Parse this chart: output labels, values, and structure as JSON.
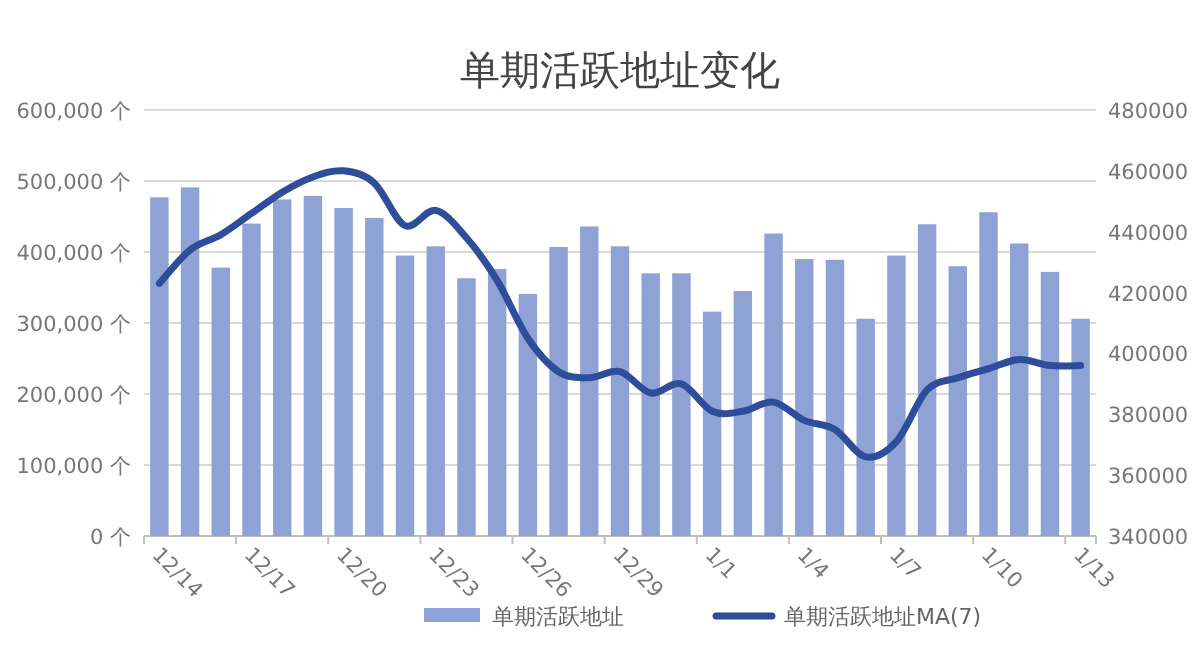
{
  "chart_data": {
    "type": "bar",
    "title": "单期活跃地址变化",
    "categories": [
      "12/14",
      null,
      null,
      "12/17",
      null,
      null,
      "12/20",
      null,
      null,
      "12/23",
      null,
      null,
      "12/26",
      null,
      null,
      "12/29",
      null,
      null,
      "1/1",
      null,
      null,
      "1/4",
      null,
      null,
      "1/7",
      null,
      null,
      "1/10",
      null,
      null,
      "1/13"
    ],
    "series": [
      {
        "name": "单期活跃地址",
        "color": "#8fa2d6",
        "values": [
          477000,
          491000,
          378000,
          440000,
          474000,
          479000,
          462000,
          448000,
          395000,
          408000,
          363000,
          376000,
          341000,
          407000,
          436000,
          408000,
          370000,
          370000,
          316000,
          345000,
          426000,
          390000,
          389000,
          306000,
          395000,
          439000,
          380000,
          456000,
          412000,
          372000,
          306000
        ]
      },
      {
        "name": "单期活跃地址MA(7)",
        "type": "line",
        "axis": "y2",
        "color": "#2e4d9a",
        "values": [
          423000,
          434000,
          439000,
          446000,
          453000,
          458000,
          460000,
          456000,
          442000,
          447000,
          438000,
          424000,
          405000,
          394000,
          392000,
          394000,
          387000,
          390000,
          381000,
          381000,
          384000,
          378000,
          375000,
          366000,
          371000,
          388000,
          392000,
          395000,
          398000,
          396000,
          396000
        ]
      }
    ],
    "ylim": [
      0,
      600000
    ],
    "yticks": [
      {
        "value": 0,
        "label": "0 个"
      },
      {
        "value": 100000,
        "label": "100,000 个"
      },
      {
        "value": 200000,
        "label": "200,000 个"
      },
      {
        "value": 300000,
        "label": "300,000 个"
      },
      {
        "value": 400000,
        "label": "400,000 个"
      },
      {
        "value": 500000,
        "label": "500,000 个"
      },
      {
        "value": 600000,
        "label": "600,000 个"
      }
    ],
    "y2lim": [
      340000,
      480000
    ],
    "y2ticks": [
      340000,
      360000,
      380000,
      400000,
      420000,
      440000,
      460000,
      480000
    ],
    "grid": "y",
    "legend": "bottom"
  }
}
